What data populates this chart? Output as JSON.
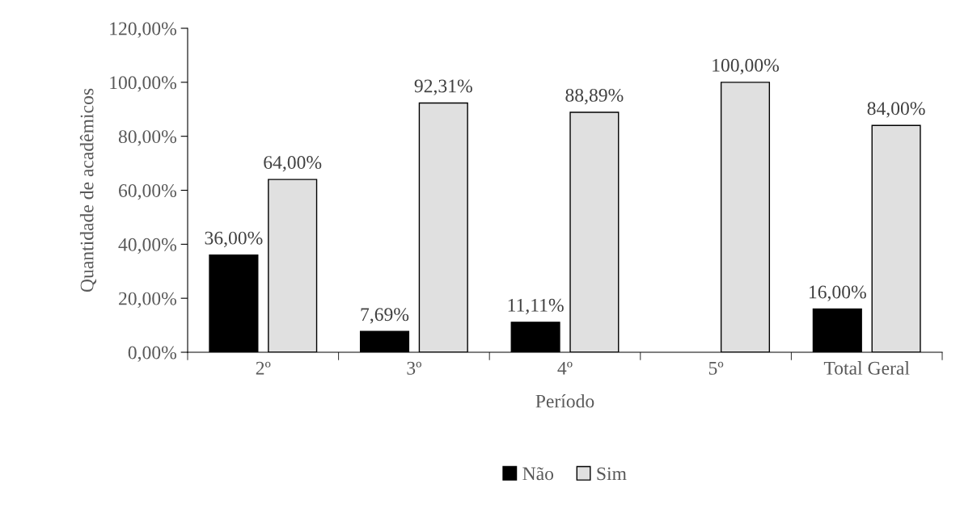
{
  "chart_data": {
    "type": "bar",
    "xlabel": "Período",
    "ylabel": "Quantidade de acadêmicos",
    "categories": [
      "2º",
      "3º",
      "4º",
      "5º",
      "Total Geral"
    ],
    "series": [
      {
        "name": "Não",
        "color": "#000000",
        "values": [
          36.0,
          7.69,
          11.11,
          0,
          16.0
        ],
        "value_labels": [
          "36,00%",
          "7,69%",
          "11,11%",
          null,
          "16,00%"
        ]
      },
      {
        "name": "Sim",
        "color": "#e0e0e0",
        "values": [
          64.0,
          92.31,
          88.89,
          100.0,
          84.0
        ],
        "value_labels": [
          "64,00%",
          "92,31%",
          "88,89%",
          "100,00%",
          "84,00%"
        ]
      }
    ],
    "ylim": [
      0,
      120
    ],
    "yticks": [
      {
        "value": 0,
        "label": "0,00%"
      },
      {
        "value": 20,
        "label": "20,00%"
      },
      {
        "value": 40,
        "label": "40,00%"
      },
      {
        "value": 60,
        "label": "60,00%"
      },
      {
        "value": 80,
        "label": "80,00%"
      },
      {
        "value": 100,
        "label": "100,00%"
      },
      {
        "value": 120,
        "label": "120,00%"
      }
    ],
    "grid": false,
    "legend": "bottom"
  }
}
